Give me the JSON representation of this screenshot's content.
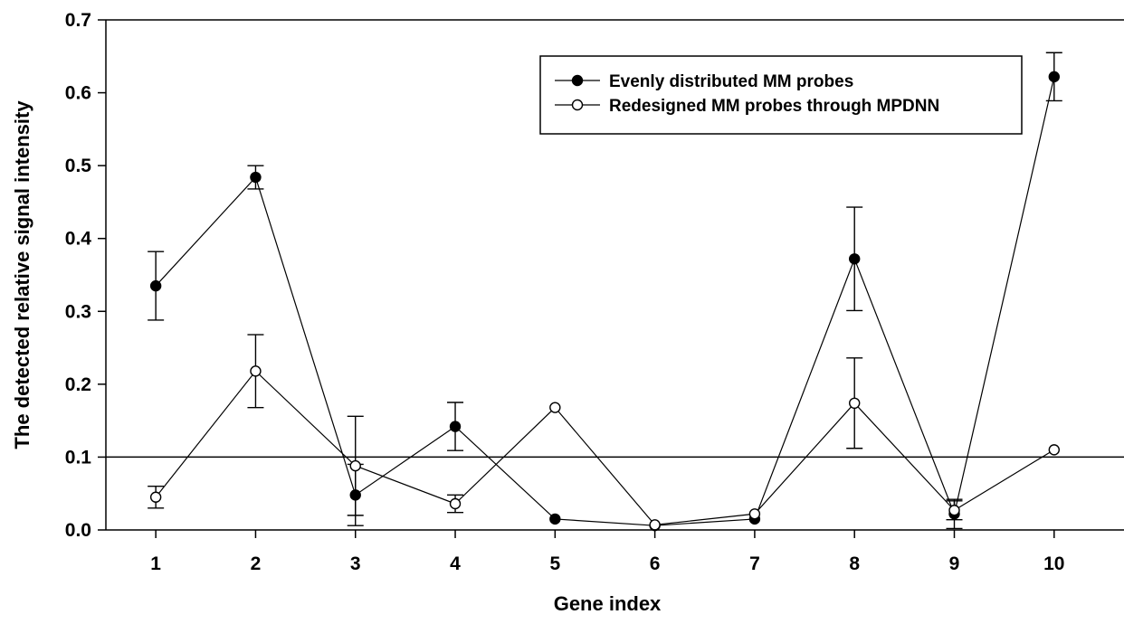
{
  "chart_data": {
    "type": "line",
    "title": "",
    "xlabel": "Gene index",
    "ylabel": "The detected relative signal intensity",
    "x": [
      1,
      2,
      3,
      4,
      5,
      6,
      7,
      8,
      9,
      10
    ],
    "xlim": [
      0.5,
      10.7
    ],
    "ylim": [
      0,
      0.7
    ],
    "x_ticks": [
      "1",
      "2",
      "3",
      "4",
      "5",
      "6",
      "7",
      "8",
      "9",
      "10"
    ],
    "y_ticks": [
      "0.0",
      "0.1",
      "0.2",
      "0.3",
      "0.4",
      "0.5",
      "0.6",
      "0.7"
    ],
    "reference_line_y": 0.1,
    "grid": false,
    "legend_position": "top-right",
    "series": [
      {
        "name": "Evenly distributed MM probes",
        "marker": "filled-circle",
        "color": "#000000",
        "values": [
          0.335,
          0.484,
          0.048,
          0.142,
          0.015,
          0.006,
          0.015,
          0.372,
          0.022,
          0.622
        ],
        "errors": [
          0.047,
          0.016,
          0.042,
          0.033,
          0.0,
          0.0,
          0.0,
          0.071,
          0.02,
          0.033
        ]
      },
      {
        "name": "Redesigned MM probes through MPDNN",
        "marker": "open-circle",
        "color": "#000000",
        "values": [
          0.045,
          0.218,
          0.088,
          0.036,
          0.168,
          0.007,
          0.022,
          0.174,
          0.027,
          0.11
        ],
        "errors": [
          0.015,
          0.05,
          0.068,
          0.012,
          0.0,
          0.0,
          0.0,
          0.062,
          0.013,
          0.0
        ]
      }
    ]
  }
}
